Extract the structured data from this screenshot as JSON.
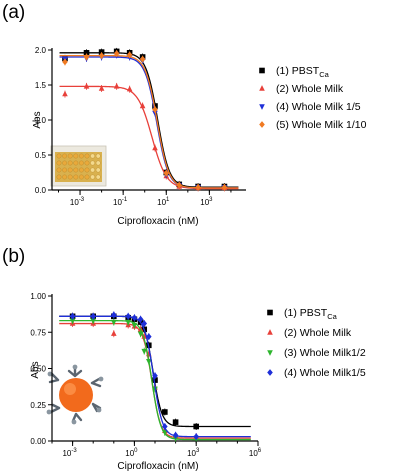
{
  "panels": [
    {
      "label": "(a)",
      "chart_data": {
        "type": "scatter",
        "xscale": "log",
        "xlim": [
          5e-05,
          50000
        ],
        "ylim": [
          0,
          2.0
        ],
        "xlabel": "Ciprofloxacin (nM)",
        "ylabel": "Abs",
        "xtick_exponents": [
          -3,
          -1,
          1,
          3
        ],
        "yticks": [
          "0.0",
          "0.5",
          "1.0",
          "1.5",
          "2.0"
        ],
        "yticks_values": [
          0,
          0.5,
          1.0,
          1.5,
          2.0
        ],
        "legend_position": "right",
        "inset": "photo of yellow microplate (wells)",
        "x": [
          0.0002,
          0.002,
          0.01,
          0.05,
          0.2,
          0.8,
          3,
          10,
          40,
          300,
          5000
        ],
        "series": [
          {
            "name": "(1) PBST",
            "subscript": "Ca",
            "color": "#000000",
            "marker": "square",
            "values": [
              1.88,
              1.96,
              1.97,
              1.98,
              1.96,
              1.9,
              1.2,
              0.25,
              0.08,
              0.05,
              0.05
            ],
            "fit": {
              "top": 1.96,
              "bottom": 0.04,
              "ec50": 4.0,
              "hill": 1.6
            }
          },
          {
            "name": "(2) Whole Milk",
            "color": "#e8403a",
            "marker": "triangle-up",
            "values": [
              1.37,
              1.48,
              1.45,
              1.48,
              1.44,
              1.2,
              0.6,
              0.2,
              0.05,
              0.03,
              0.03
            ],
            "fit": {
              "top": 1.48,
              "bottom": 0.02,
              "ec50": 2.2,
              "hill": 1.3
            }
          },
          {
            "name": "(4) Whole Milk 1/5",
            "color": "#1f2fd8",
            "marker": "triangle-down",
            "values": [
              1.87,
              1.88,
              1.9,
              1.93,
              1.9,
              1.85,
              1.1,
              0.22,
              0.07,
              0.04,
              0.04
            ],
            "fit": {
              "top": 1.9,
              "bottom": 0.03,
              "ec50": 3.6,
              "hill": 1.6
            }
          },
          {
            "name": "(5) Whole Milk 1/10",
            "color": "#f07a22",
            "marker": "diamond",
            "values": [
              1.83,
              1.9,
              1.92,
              1.95,
              1.93,
              1.87,
              1.15,
              0.24,
              0.07,
              0.04,
              0.04
            ],
            "fit": {
              "top": 1.92,
              "bottom": 0.03,
              "ec50": 3.8,
              "hill": 1.6
            }
          }
        ]
      }
    },
    {
      "label": "(b)",
      "chart_data": {
        "type": "scatter",
        "xscale": "log",
        "xlim": [
          0.0001,
          1000000
        ],
        "ylim": [
          0,
          1.0
        ],
        "xlabel": "Ciprofloxacin (nM)",
        "ylabel": "Abs",
        "xtick_exponents": [
          -3,
          0,
          3,
          6
        ],
        "yticks": [
          "0.00",
          "0.25",
          "0.50",
          "0.75",
          "1.00"
        ],
        "yticks_values": [
          0,
          0.25,
          0.5,
          0.75,
          1.0
        ],
        "legend_position": "right",
        "inset": "illustration of orange nanoparticle with antibody molecules",
        "x": [
          0.001,
          0.01,
          0.1,
          0.5,
          1,
          2,
          3,
          5,
          10,
          30,
          100,
          1000
        ],
        "series": [
          {
            "name": "(1) PBST",
            "subscript": "Ca",
            "color": "#000000",
            "marker": "square",
            "values": [
              0.86,
              0.86,
              0.86,
              0.85,
              0.84,
              0.82,
              0.77,
              0.66,
              0.42,
              0.2,
              0.13,
              0.1
            ],
            "fit": {
              "top": 0.86,
              "bottom": 0.1,
              "ec50": 8.0,
              "hill": 2.0
            }
          },
          {
            "name": "(2) Whole Milk",
            "color": "#e8403a",
            "marker": "triangle-up",
            "values": [
              0.81,
              0.81,
              0.74,
              0.8,
              0.79,
              0.77,
              0.72,
              0.6,
              0.37,
              0.07,
              0.03,
              0.03
            ],
            "fit": {
              "top": 0.81,
              "bottom": 0.02,
              "ec50": 7.0,
              "hill": 2.0
            }
          },
          {
            "name": "(3) Whole Milk1/2",
            "color": "#2db52d",
            "marker": "triangle-down",
            "values": [
              0.83,
              0.83,
              0.82,
              0.82,
              0.8,
              0.74,
              0.62,
              0.55,
              0.36,
              0.06,
              0.02,
              0.02
            ],
            "fit": {
              "top": 0.83,
              "bottom": 0.01,
              "ec50": 7.0,
              "hill": 2.0
            }
          },
          {
            "name": "(4) Whole Milk1/5",
            "color": "#1f2fd8",
            "marker": "diamond",
            "values": [
              0.86,
              0.86,
              0.87,
              0.86,
              0.85,
              0.84,
              0.81,
              0.72,
              0.45,
              0.1,
              0.04,
              0.03
            ],
            "fit": {
              "top": 0.86,
              "bottom": 0.03,
              "ec50": 8.5,
              "hill": 2.0
            }
          }
        ]
      }
    }
  ]
}
